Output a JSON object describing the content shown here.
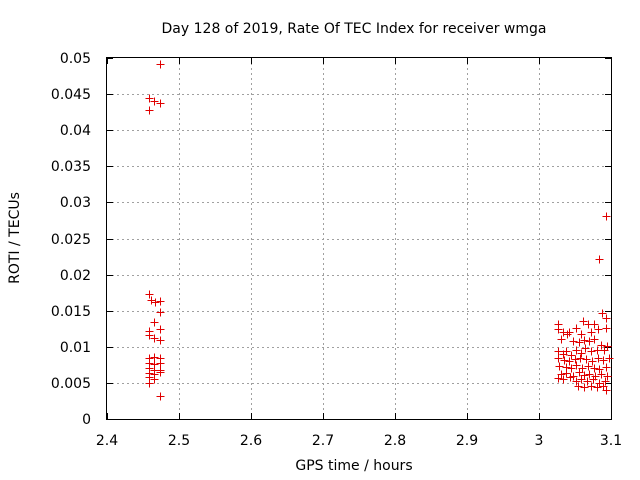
{
  "chart_data": {
    "type": "scatter",
    "title": "Day 128 of 2019, Rate Of TEC Index for receiver wmga",
    "xlabel": "GPS time / hours",
    "ylabel": "ROTI / TECUs",
    "xlim": [
      2.4,
      3.1
    ],
    "ylim": [
      0,
      0.05
    ],
    "grid": true,
    "marker": "+",
    "color": "#e00000",
    "x_ticks": [
      "2.4",
      "2.5",
      "2.6",
      "2.7",
      "2.8",
      "2.9",
      "3",
      "3.1"
    ],
    "y_ticks": [
      "0",
      "0.005",
      "0.01",
      "0.015",
      "0.02",
      "0.025",
      "0.03",
      "0.035",
      "0.04",
      "0.045",
      "0.05"
    ],
    "x_tick_values": [
      2.4,
      2.5,
      2.6,
      2.7,
      2.8,
      2.9,
      3.0,
      3.1
    ],
    "y_tick_values": [
      0,
      0.005,
      0.01,
      0.015,
      0.02,
      0.025,
      0.03,
      0.035,
      0.04,
      0.045,
      0.05
    ],
    "points": [
      [
        2.474,
        0.0492
      ],
      [
        2.458,
        0.0445
      ],
      [
        2.465,
        0.044
      ],
      [
        2.474,
        0.0437
      ],
      [
        2.458,
        0.0428
      ],
      [
        2.458,
        0.0173
      ],
      [
        2.461,
        0.0165
      ],
      [
        2.467,
        0.0162
      ],
      [
        2.474,
        0.0164
      ],
      [
        2.474,
        0.0148
      ],
      [
        2.465,
        0.0134
      ],
      [
        2.458,
        0.0122
      ],
      [
        2.474,
        0.0125
      ],
      [
        2.458,
        0.0117
      ],
      [
        2.465,
        0.0112
      ],
      [
        2.474,
        0.011
      ],
      [
        2.458,
        0.0085
      ],
      [
        2.465,
        0.0086
      ],
      [
        2.474,
        0.0085
      ],
      [
        2.458,
        0.0078
      ],
      [
        2.465,
        0.0076
      ],
      [
        2.474,
        0.0077
      ],
      [
        2.458,
        0.007
      ],
      [
        2.465,
        0.0068
      ],
      [
        2.474,
        0.0068
      ],
      [
        2.458,
        0.0064
      ],
      [
        2.465,
        0.0062
      ],
      [
        2.474,
        0.0065
      ],
      [
        2.458,
        0.0058
      ],
      [
        2.465,
        0.0055
      ],
      [
        2.458,
        0.005
      ],
      [
        2.474,
        0.0032
      ],
      [
        3.093,
        0.0281
      ],
      [
        3.084,
        0.0222
      ],
      [
        3.093,
        0.014
      ],
      [
        3.087,
        0.0147
      ],
      [
        3.061,
        0.0136
      ],
      [
        3.068,
        0.0131
      ],
      [
        3.077,
        0.0131
      ],
      [
        3.026,
        0.0132
      ],
      [
        3.026,
        0.0124
      ],
      [
        3.034,
        0.012
      ],
      [
        3.039,
        0.0118
      ],
      [
        3.042,
        0.012
      ],
      [
        3.051,
        0.0126
      ],
      [
        3.058,
        0.0118
      ],
      [
        3.072,
        0.012
      ],
      [
        3.082,
        0.0124
      ],
      [
        3.093,
        0.0126
      ],
      [
        3.03,
        0.0111
      ],
      [
        3.047,
        0.0108
      ],
      [
        3.056,
        0.0106
      ],
      [
        3.063,
        0.011
      ],
      [
        3.069,
        0.0108
      ],
      [
        3.076,
        0.0111
      ],
      [
        3.086,
        0.0103
      ],
      [
        3.095,
        0.0101
      ],
      [
        3.026,
        0.0094
      ],
      [
        3.033,
        0.009
      ],
      [
        3.038,
        0.0094
      ],
      [
        3.044,
        0.0089
      ],
      [
        3.052,
        0.0096
      ],
      [
        3.058,
        0.0092
      ],
      [
        3.064,
        0.0098
      ],
      [
        3.072,
        0.0094
      ],
      [
        3.08,
        0.0095
      ],
      [
        3.09,
        0.0096
      ],
      [
        3.026,
        0.0085
      ],
      [
        3.035,
        0.0082
      ],
      [
        3.042,
        0.008
      ],
      [
        3.05,
        0.0083
      ],
      [
        3.057,
        0.0084
      ],
      [
        3.065,
        0.0083
      ],
      [
        3.073,
        0.0081
      ],
      [
        3.082,
        0.0084
      ],
      [
        3.089,
        0.0082
      ],
      [
        3.097,
        0.0085
      ],
      [
        3.028,
        0.0074
      ],
      [
        3.037,
        0.0072
      ],
      [
        3.044,
        0.007
      ],
      [
        3.052,
        0.0075
      ],
      [
        3.06,
        0.007
      ],
      [
        3.068,
        0.0073
      ],
      [
        3.076,
        0.0071
      ],
      [
        3.084,
        0.0069
      ],
      [
        3.093,
        0.0072
      ],
      [
        3.03,
        0.0063
      ],
      [
        3.038,
        0.0064
      ],
      [
        3.047,
        0.006
      ],
      [
        3.055,
        0.0065
      ],
      [
        3.062,
        0.0061
      ],
      [
        3.07,
        0.0063
      ],
      [
        3.078,
        0.006
      ],
      [
        3.086,
        0.0062
      ],
      [
        3.095,
        0.0059
      ],
      [
        3.026,
        0.0057
      ],
      [
        3.034,
        0.0055
      ],
      [
        3.043,
        0.0058
      ],
      [
        3.051,
        0.0052
      ],
      [
        3.059,
        0.0056
      ],
      [
        3.067,
        0.0053
      ],
      [
        3.075,
        0.0055
      ],
      [
        3.083,
        0.005
      ],
      [
        3.091,
        0.0052
      ],
      [
        3.054,
        0.0046
      ],
      [
        3.063,
        0.0044
      ],
      [
        3.072,
        0.0046
      ],
      [
        3.08,
        0.0044
      ],
      [
        3.089,
        0.0046
      ],
      [
        3.093,
        0.004
      ]
    ]
  }
}
